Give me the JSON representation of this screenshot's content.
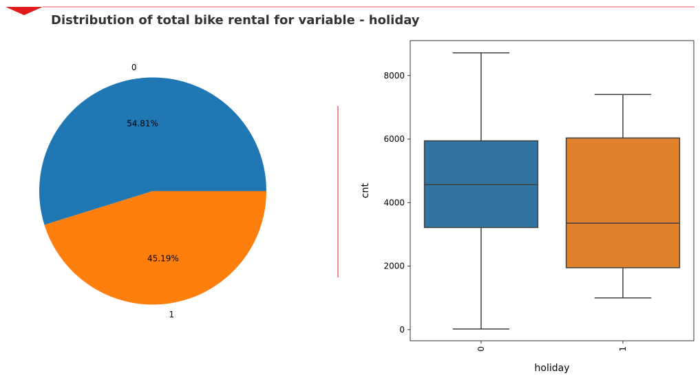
{
  "title": "Distribution of total bike rental for variable - holiday",
  "colors": {
    "accent": "#e31a1c",
    "series_0": "#1f77b4",
    "series_1": "#ff7f0e",
    "box_0": "#3274a1",
    "box_1": "#e1812c",
    "line": "#3f3f3f"
  },
  "chart_data": [
    {
      "type": "pie",
      "labels": [
        "0",
        "1"
      ],
      "values": [
        54.81,
        45.19
      ],
      "value_labels": [
        "54.81%",
        "45.19%"
      ]
    },
    {
      "type": "box",
      "categories": [
        "0",
        "1"
      ],
      "xlabel": "holiday",
      "ylabel": "cnt",
      "ylim": [
        -350,
        9100
      ],
      "yticks": [
        0,
        2000,
        4000,
        6000,
        8000
      ],
      "boxes": [
        {
          "category": "0",
          "whisker_low": 22,
          "q1": 3215,
          "median": 4565,
          "q3": 5945,
          "whisker_high": 8714
        },
        {
          "category": "1",
          "whisker_low": 1000,
          "q1": 1950,
          "median": 3350,
          "q3": 6035,
          "whisker_high": 7403
        }
      ],
      "grid": false,
      "xtick_rotation": 90
    }
  ]
}
